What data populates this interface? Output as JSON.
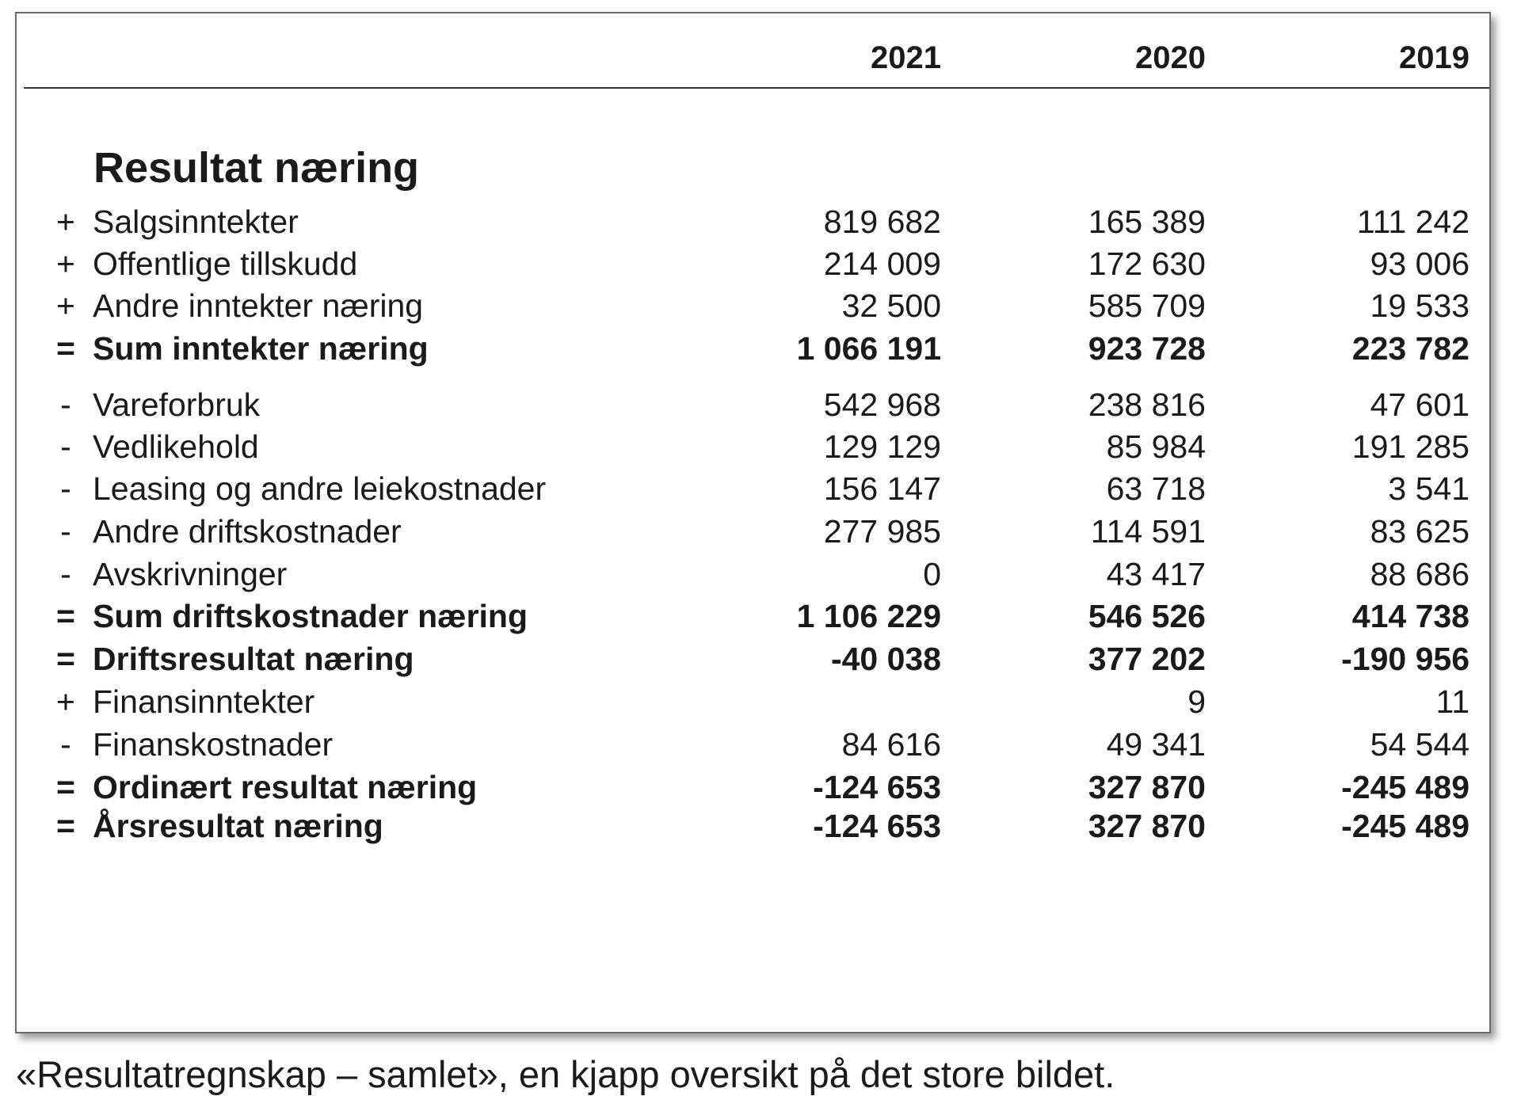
{
  "header": {
    "years": [
      "2021",
      "2020",
      "2019"
    ]
  },
  "section_title": "Resultat næring",
  "rows": [
    {
      "sign": "+",
      "label": "Salgsinntekter",
      "values": [
        "819 682",
        "165 389",
        "111 242"
      ],
      "bold": false
    },
    {
      "sign": "+",
      "label": "Offentlige tillskudd",
      "values": [
        "214 009",
        "172 630",
        "93 006"
      ],
      "bold": false
    },
    {
      "sign": "+",
      "label": "Andre inntekter næring",
      "values": [
        "32 500",
        "585 709",
        "19 533"
      ],
      "bold": false
    },
    {
      "sign": "=",
      "label": "Sum inntekter næring",
      "values": [
        "1 066 191",
        "923 728",
        "223 782"
      ],
      "bold": true
    },
    {
      "sign": "-",
      "label": "Vareforbruk",
      "values": [
        "542 968",
        "238 816",
        "47 601"
      ],
      "bold": false
    },
    {
      "sign": "-",
      "label": "Vedlikehold",
      "values": [
        "129 129",
        "85 984",
        "191 285"
      ],
      "bold": false
    },
    {
      "sign": "-",
      "label": "Leasing og andre leiekostnader",
      "values": [
        "156 147",
        "63 718",
        "3 541"
      ],
      "bold": false
    },
    {
      "sign": "-",
      "label": "Andre driftskostnader",
      "values": [
        "277 985",
        "114 591",
        "83 625"
      ],
      "bold": false
    },
    {
      "sign": "-",
      "label": "Avskrivninger",
      "values": [
        "0",
        "43 417",
        "88 686"
      ],
      "bold": false
    },
    {
      "sign": "=",
      "label": "Sum driftskostnader næring",
      "values": [
        "1 106 229",
        "546 526",
        "414 738"
      ],
      "bold": true
    },
    {
      "sign": "=",
      "label": "Driftsresultat næring",
      "values": [
        "-40 038",
        "377 202",
        "-190 956"
      ],
      "bold": true
    },
    {
      "sign": "+",
      "label": "Finansinntekter",
      "values": [
        "",
        "9",
        "11"
      ],
      "bold": false
    },
    {
      "sign": "-",
      "label": "Finanskostnader",
      "values": [
        "84 616",
        "49 341",
        "54 544"
      ],
      "bold": false
    },
    {
      "sign": "=",
      "label": "Ordinært resultat næring",
      "values": [
        "-124 653",
        "327 870",
        "-245 489"
      ],
      "bold": true
    },
    {
      "sign": "=",
      "label": "Årsresultat næring",
      "values": [
        "-124 653",
        "327 870",
        "-245 489"
      ],
      "bold": true
    }
  ],
  "caption": "«Resultatregnskap – samlet», en kjapp oversikt på det store bildet."
}
